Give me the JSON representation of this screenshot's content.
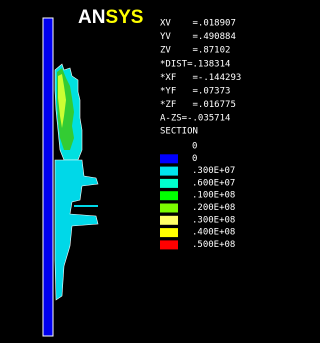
{
  "logo": {
    "part1": "AN",
    "part2": "SYS"
  },
  "view_params": [
    "XV    =.018907",
    "YV    =.490884",
    "ZV    =.87102",
    "*DIST=.138314",
    "*XF   =-.144293",
    "*YF   =.07373",
    "*ZF   =.016775",
    "A-ZS=-.035714"
  ],
  "legend": {
    "title": "SECTION",
    "labels": [
      "0",
      "0",
      ".300E+07",
      ".600E+07",
      ".100E+08",
      ".200E+08",
      ".300E+08",
      ".400E+08",
      ".500E+08"
    ],
    "colors": [
      "#0000ff",
      "#1e90ff",
      "#00e5ee",
      "#00ffcc",
      "#00ff00",
      "#7cfc00",
      "#ffff66",
      "#ffff00",
      "#ff0000"
    ]
  }
}
